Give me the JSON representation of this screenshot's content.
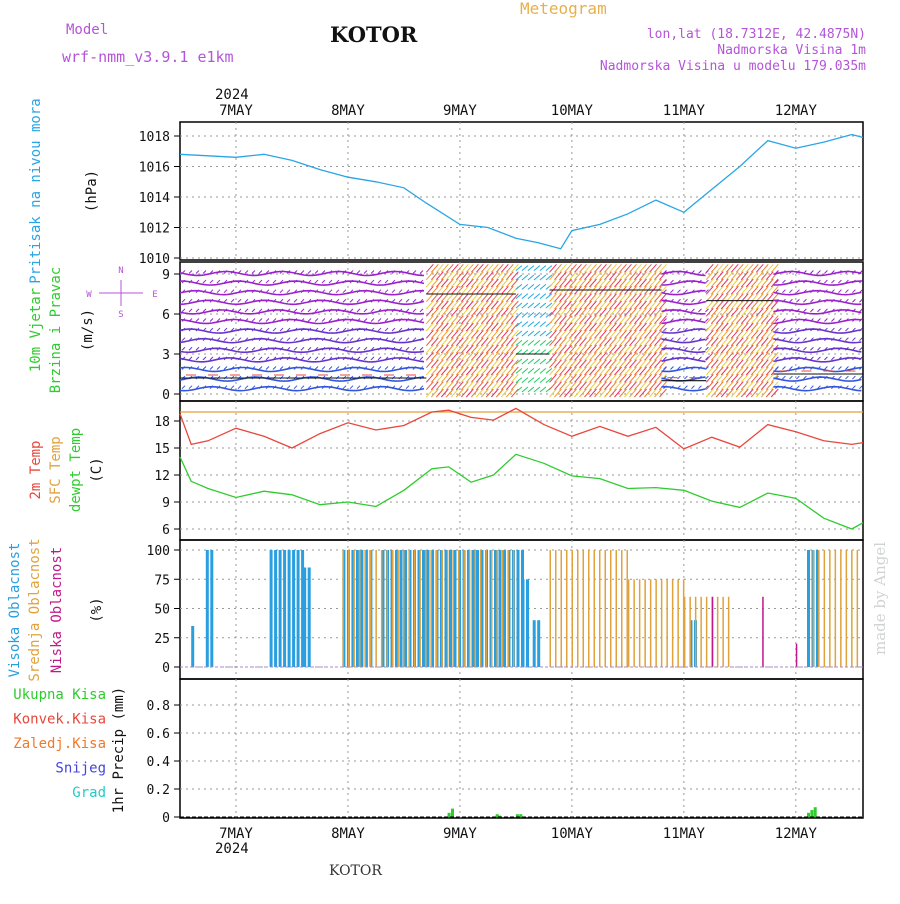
{
  "header": {
    "model_label": "Model",
    "model_name": "wrf-nmm_v3.9.1  e1km",
    "station": "KOTOR",
    "product": "Meteogram",
    "coords": "lon,lat (18.7312E, 42.4875N)",
    "elevation": "Nadmorska Visina 1m",
    "model_elevation": "Nadmorska Visina u modelu 179.035m",
    "footer_station": "KOTOR",
    "watermark": "made by Angel"
  },
  "colors": {
    "pressure": "#29a5e6",
    "temp2m": "#e8473c",
    "sfc_temp": "#e0a23c",
    "dewpoint": "#2ecc2e",
    "high_cloud": "#2a9fe0",
    "mid_cloud": "#e0a23c",
    "low_cloud": "#c0188a",
    "total_precip": "#2ecc2e",
    "conv_precip": "#e8473c",
    "frozen_precip": "#f07a2c",
    "snow": "#4444dd",
    "hail": "#22cccc",
    "label_purple": "#b455d8",
    "title_orange": "#e8b04a"
  },
  "chart_data": [
    {
      "type": "line",
      "panel": "pressure",
      "title": "",
      "ylabel_lines": [
        "Pritisak na nivou mora",
        "(hPa)"
      ],
      "ylim": [
        1010,
        1019
      ],
      "yticks": [
        1010,
        1012,
        1014,
        1016,
        1018
      ],
      "x_top_year": "2024",
      "x_bottom_year": "2024",
      "x_days": [
        "7MAY",
        "8MAY",
        "9MAY",
        "10MAY",
        "11MAY",
        "12MAY"
      ],
      "x_day_index": [
        0.5,
        1.5,
        2.5,
        3.5,
        4.5,
        5.5
      ],
      "xlim": [
        0,
        6.1
      ],
      "grid": true,
      "series": [
        {
          "color_key": "pressure",
          "x": [
            0.0,
            0.25,
            0.5,
            0.75,
            1.0,
            1.25,
            1.5,
            1.75,
            2.0,
            2.2,
            2.5,
            2.75,
            3.0,
            3.2,
            3.4,
            3.5,
            3.75,
            4.0,
            4.25,
            4.5,
            4.75,
            5.0,
            5.25,
            5.5,
            5.75,
            6.0,
            6.1
          ],
          "y": [
            1016.8,
            1016.7,
            1016.6,
            1016.8,
            1016.4,
            1015.8,
            1015.3,
            1015.0,
            1014.6,
            1013.6,
            1012.2,
            1012.0,
            1011.3,
            1011.0,
            1010.6,
            1011.8,
            1012.2,
            1012.9,
            1013.8,
            1013.0,
            1014.5,
            1016.0,
            1017.7,
            1017.2,
            1017.6,
            1018.1,
            1017.9
          ]
        }
      ]
    },
    {
      "type": "vector",
      "panel": "wind",
      "title": "",
      "ylabel_lines": [
        "10m Vjetar",
        "Brzina i Pravac",
        "(m/s)"
      ],
      "compass_labels": {
        "north": "N",
        "south": "S",
        "west": "W",
        "east": "E"
      },
      "ylim": [
        -0.5,
        10
      ],
      "yticks": [
        0,
        3,
        6,
        9
      ],
      "segments": [
        {
          "x": [
            0,
            2.2
          ],
          "level": "calm",
          "speed": 1.2
        },
        {
          "x": [
            2.2,
            3.0
          ],
          "level": "strong",
          "speed": 7.5
        },
        {
          "x": [
            3.0,
            3.3
          ],
          "level": "moderate",
          "speed": 3.0
        },
        {
          "x": [
            3.3,
            4.3
          ],
          "level": "strong",
          "speed": 7.8
        },
        {
          "x": [
            4.3,
            4.7
          ],
          "level": "calm",
          "speed": 1.0
        },
        {
          "x": [
            4.7,
            5.3
          ],
          "level": "strong",
          "speed": 7.0
        },
        {
          "x": [
            5.3,
            6.1
          ],
          "level": "light",
          "speed": 1.5
        }
      ]
    },
    {
      "type": "line",
      "panel": "temperature",
      "title": "",
      "ylabel_lines": [
        "2m Temp",
        "SFC Temp",
        "dewpt Temp",
        "(C)"
      ],
      "ylim": [
        5,
        20
      ],
      "yticks": [
        6,
        9,
        12,
        15,
        18
      ],
      "sfc_temp_line": 19.0,
      "series": [
        {
          "name": "2m Temp",
          "color_key": "temp2m",
          "x": [
            0.0,
            0.1,
            0.25,
            0.5,
            0.75,
            1.0,
            1.25,
            1.5,
            1.75,
            2.0,
            2.25,
            2.4,
            2.6,
            2.8,
            3.0,
            3.25,
            3.5,
            3.75,
            4.0,
            4.25,
            4.5,
            4.75,
            5.0,
            5.25,
            5.5,
            5.75,
            6.0,
            6.1
          ],
          "y": [
            18.8,
            15.4,
            15.8,
            17.2,
            16.3,
            15.0,
            16.6,
            17.8,
            17.0,
            17.5,
            19.0,
            19.2,
            18.4,
            18.1,
            19.4,
            17.6,
            16.3,
            17.4,
            16.3,
            17.3,
            14.9,
            16.2,
            15.1,
            17.6,
            16.8,
            15.8,
            15.4,
            15.6
          ]
        },
        {
          "name": "dewpt Temp",
          "color_key": "dewpoint",
          "x": [
            0.0,
            0.1,
            0.25,
            0.5,
            0.75,
            1.0,
            1.25,
            1.5,
            1.75,
            2.0,
            2.25,
            2.4,
            2.6,
            2.8,
            3.0,
            3.25,
            3.5,
            3.75,
            4.0,
            4.25,
            4.5,
            4.75,
            5.0,
            5.25,
            5.5,
            5.75,
            6.0,
            6.1
          ],
          "y": [
            14.0,
            11.3,
            10.5,
            9.5,
            10.2,
            9.8,
            8.7,
            9.0,
            8.5,
            10.3,
            12.7,
            12.9,
            11.2,
            12.0,
            14.3,
            13.3,
            11.9,
            11.6,
            10.5,
            10.6,
            10.3,
            9.1,
            8.4,
            10.0,
            9.4,
            7.2,
            6.0,
            6.7
          ]
        }
      ]
    },
    {
      "type": "bar",
      "panel": "clouds",
      "title": "",
      "ylabel_lines": [
        "Visoka Oblacnost",
        "Srednja Oblacnost",
        "Niska Oblacnost",
        "(%)"
      ],
      "ylim": [
        0,
        100
      ],
      "yticks": [
        0,
        25,
        50,
        75,
        100
      ],
      "series": [
        {
          "name": "Visoka Oblacnost",
          "color_key": "high_cloud",
          "x_ranges": [
            [
              0.1,
              0.12,
              35
            ],
            [
              0.23,
              0.28,
              100
            ],
            [
              0.8,
              1.1,
              100
            ],
            [
              1.1,
              1.15,
              85
            ],
            [
              1.45,
              1.7,
              100
            ],
            [
              1.8,
              3.05,
              100
            ],
            [
              3.05,
              3.1,
              75
            ],
            [
              3.15,
              3.2,
              40
            ],
            [
              4.55,
              4.6,
              40
            ],
            [
              5.6,
              5.7,
              100
            ]
          ]
        },
        {
          "name": "Srednja Oblacnost",
          "color_key": "mid_cloud",
          "x_ranges": [
            [
              1.45,
              3.0,
              100
            ],
            [
              3.3,
              4.0,
              100
            ],
            [
              4.0,
              4.5,
              75
            ],
            [
              4.5,
              4.9,
              60
            ],
            [
              5.65,
              6.05,
              100
            ]
          ]
        },
        {
          "name": "Niska Oblacnost",
          "color_key": "low_cloud",
          "x_ranges": [
            [
              4.75,
              4.77,
              60
            ],
            [
              5.2,
              5.22,
              60
            ],
            [
              5.5,
              5.52,
              20
            ]
          ]
        }
      ]
    },
    {
      "type": "bar",
      "panel": "precip",
      "title": "",
      "ylabel_lines": [
        "1hr Precip (mm)"
      ],
      "legend": [
        "Ukupna Kisa",
        "Konvek.Kisa",
        "Zaledj.Kisa",
        "Snijeg",
        "Grad"
      ],
      "legend_color_keys": [
        "total_precip",
        "conv_precip",
        "frozen_precip",
        "snow",
        "hail"
      ],
      "ylim": [
        0,
        1.0
      ],
      "yticks": [
        0,
        0.2,
        0.4,
        0.6,
        0.8
      ],
      "series": [
        {
          "name": "Ukupna Kisa",
          "color_key": "total_precip",
          "x": [
            2.39,
            2.42,
            2.82,
            2.84,
            3.0,
            3.03,
            5.6,
            5.63,
            5.66
          ],
          "values": [
            0.03,
            0.06,
            0.02,
            0.01,
            0.02,
            0.02,
            0.03,
            0.05,
            0.07
          ]
        }
      ]
    }
  ]
}
